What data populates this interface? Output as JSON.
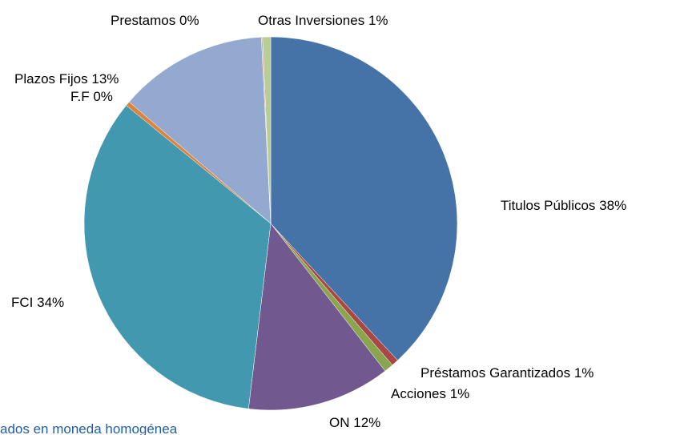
{
  "chart_data": {
    "type": "pie",
    "categories": [
      "Titulos Públicos",
      "Préstamos Garantizados",
      "Acciones",
      "ON",
      "FCI",
      "F.F",
      "Plazos Fijos",
      "Prestamos",
      "Otras Inversiones"
    ],
    "values": [
      38.1,
      0.6,
      0.8,
      12.4,
      34.0,
      0.4,
      12.9,
      0.1,
      0.7
    ],
    "value_labels": [
      "38%",
      "1%",
      "1%",
      "12%",
      "34%",
      "0%",
      "13%",
      "0%",
      "1%"
    ],
    "colors": [
      "#4572a7",
      "#aa4643",
      "#89a54e",
      "#71588f",
      "#4198af",
      "#db843d",
      "#93a9cf",
      "#d19392",
      "#b9cd96"
    ],
    "footnote": "ados en moneda homogénea"
  }
}
